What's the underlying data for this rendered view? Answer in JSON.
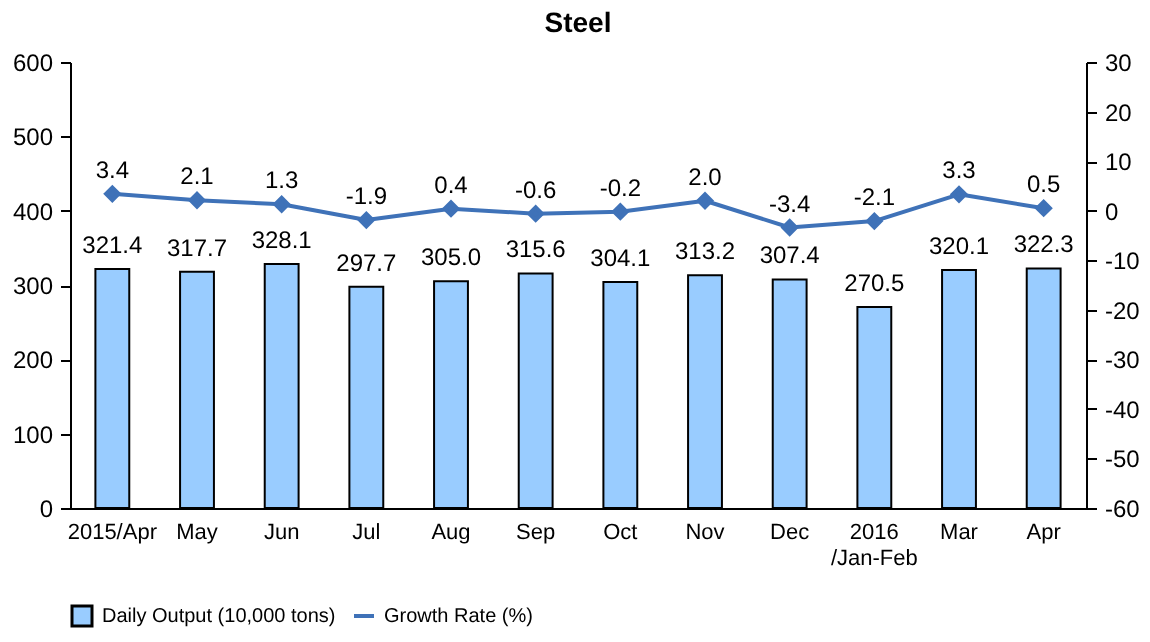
{
  "chart_data": {
    "type": "bar",
    "title": "Steel",
    "categories": [
      "2015/Apr",
      "May",
      "Jun",
      "Jul",
      "Aug",
      "Sep",
      "Oct",
      "Nov",
      "Dec",
      "2016\n/Jan-Feb",
      "Mar",
      "Apr"
    ],
    "series": [
      {
        "name": "Daily Output (10,000 tons)",
        "color": "#99ccff",
        "values": [
          321.4,
          317.7,
          328.1,
          297.7,
          305.0,
          315.6,
          304.1,
          313.2,
          307.4,
          270.5,
          320.1,
          322.3
        ],
        "value_labels": [
          "321.4",
          "317.7",
          "328.1",
          "297.7",
          "305.0",
          "315.6",
          "304.1",
          "313.2",
          "307.4",
          "270.5",
          "320.1",
          "322.3"
        ]
      },
      {
        "name": "Growth Rate (%)",
        "type": "line",
        "axis": "y2",
        "color": "#3f72b8",
        "values": [
          3.4,
          2.1,
          1.3,
          -1.9,
          0.4,
          -0.6,
          -0.2,
          2.0,
          -3.4,
          -2.1,
          3.3,
          0.5
        ],
        "value_labels": [
          "3.4",
          "2.1",
          "1.3",
          "-1.9",
          "0.4",
          "-0.6",
          "-0.2",
          "2.0",
          "-3.4",
          "-2.1",
          "3.3",
          "0.5"
        ]
      }
    ],
    "ylim": [
      0,
      600
    ],
    "yticks": [
      0,
      100,
      200,
      300,
      400,
      500,
      600
    ],
    "y2lim": [
      -60,
      30
    ],
    "y2ticks": [
      -60,
      -50,
      -40,
      -30,
      -20,
      -10,
      0,
      10,
      20,
      30
    ],
    "grid": false,
    "legend": "bottom",
    "marker": "diamond",
    "line_style": "solid"
  }
}
